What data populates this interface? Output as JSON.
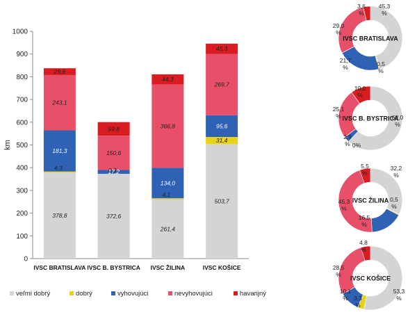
{
  "chart_data": [
    {
      "type": "bar",
      "stacked": true,
      "ylabel": "km",
      "ylim": [
        0,
        1000
      ],
      "yticks": [
        0,
        100,
        200,
        300,
        400,
        500,
        600,
        700,
        800,
        900,
        1000
      ],
      "categories": [
        "IVSC BRATISLAVA",
        "IVSC B. BYSTRICA",
        "IVSC ŽILINA",
        "IVSC KOŠICE"
      ],
      "series": [
        {
          "name": "veľmi dobrý",
          "color": "#d4d4d4",
          "values": [
            378.8,
            372.6,
            261.4,
            503.7
          ],
          "labels": [
            "378,8",
            "372,6",
            "261,4",
            "503,7"
          ]
        },
        {
          "name": "dobrý",
          "color": "#e8d21c",
          "values": [
            4.3,
            0.3,
            4.1,
            31.4
          ],
          "labels": [
            "4,3",
            "0,3",
            "4,1",
            "31,4"
          ]
        },
        {
          "name": "vyhovujúci",
          "color": "#2f62b4",
          "values": [
            181.3,
            17.2,
            134.0,
            95.6
          ],
          "labels": [
            "181,3",
            "17,2",
            "134,0",
            "95,6"
          ]
        },
        {
          "name": "nevyhovujúci",
          "color": "#e8506a",
          "values": [
            243.1,
            150.6,
            366.8,
            269.7
          ],
          "labels": [
            "243,1",
            "150,6",
            "366,8",
            "269,7"
          ]
        },
        {
          "name": "havarijný",
          "color": "#d81c22",
          "values": [
            29.8,
            59.8,
            44.3,
            45.3
          ],
          "labels": [
            "29,8",
            "59,8",
            "44,3",
            "45,3"
          ]
        }
      ],
      "grid": false,
      "legend_position": "bottom"
    },
    {
      "type": "pie",
      "donut": true,
      "title": "IVSC BRATISLAVA",
      "slices": [
        {
          "name": "veľmi dobrý",
          "value": 45.3,
          "label": "45,3 %"
        },
        {
          "name": "dobrý",
          "value": 0.5,
          "label": "0,5 %"
        },
        {
          "name": "vyhovujúci",
          "value": 21.7,
          "label": "21,7 %"
        },
        {
          "name": "nevyhovujúci",
          "value": 29.0,
          "label": "29,0 %"
        },
        {
          "name": "havarijný",
          "value": 3.6,
          "label": "3,6 %"
        }
      ]
    },
    {
      "type": "pie",
      "donut": true,
      "title": "IVSC B. BYSTRICA",
      "slices": [
        {
          "name": "veľmi dobrý",
          "value": 62.0,
          "label": "62,0 %"
        },
        {
          "name": "dobrý",
          "value": 0.0,
          "label": "0%"
        },
        {
          "name": "vyhovujúci",
          "value": 2.9,
          "label": "2,9 %"
        },
        {
          "name": "nevyhovujúci",
          "value": 25.1,
          "label": "25,1 %"
        },
        {
          "name": "havarijný",
          "value": 10.0,
          "label": "10,0 %"
        }
      ]
    },
    {
      "type": "pie",
      "donut": true,
      "title": "IVSC ŽILINA",
      "slices": [
        {
          "name": "veľmi dobrý",
          "value": 32.2,
          "label": "32,2 %"
        },
        {
          "name": "dobrý",
          "value": 0.5,
          "label": "0,5 %"
        },
        {
          "name": "vyhovujúci",
          "value": 16.5,
          "label": "16,5 %"
        },
        {
          "name": "nevyhovujúci",
          "value": 45.3,
          "label": "45,3 %"
        },
        {
          "name": "havarijný",
          "value": 5.5,
          "label": "5,5 %"
        }
      ]
    },
    {
      "type": "pie",
      "donut": true,
      "title": "IVSC KOŠICE",
      "slices": [
        {
          "name": "veľmi dobrý",
          "value": 53.3,
          "label": "53,3 %"
        },
        {
          "name": "dobrý",
          "value": 3.3,
          "label": "3,3 %"
        },
        {
          "name": "vyhovujúci",
          "value": 10.1,
          "label": "10,1 %"
        },
        {
          "name": "nevyhovujúci",
          "value": 28.5,
          "label": "28,5 %"
        },
        {
          "name": "havarijný",
          "value": 4.8,
          "label": "4,8 %"
        }
      ]
    }
  ]
}
